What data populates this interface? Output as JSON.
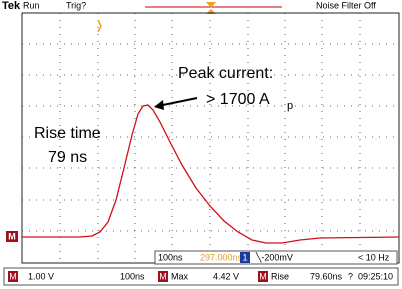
{
  "header": {
    "brand": "Tek",
    "state": "Run",
    "trigger": "Trig?",
    "filter": "Noise Filter Off"
  },
  "annotations": {
    "peak_line1": "Peak current:",
    "peak_line2": "> 1700 A",
    "peak_subscript": "p",
    "rise_line1": "Rise time",
    "rise_line2": "79 ns"
  },
  "marker": "M",
  "status": {
    "timebase": "100ns",
    "position": "297.000ns",
    "channel": "1",
    "trigger_level": "╲-200mV",
    "frequency": "< 10 Hz"
  },
  "measurements": [
    {
      "tag": "M",
      "label": "",
      "value": "1.00 V"
    },
    {
      "tag": "",
      "label": "",
      "value": "100ns"
    },
    {
      "tag": "M",
      "label": "Max",
      "value": "4.42 V"
    },
    {
      "tag": "M",
      "label": "Rise",
      "value": "79.60ns"
    },
    {
      "tag": "",
      "label": "",
      "value": "?"
    },
    {
      "tag": "",
      "label": "",
      "value": "09:25:10"
    }
  ]
}
